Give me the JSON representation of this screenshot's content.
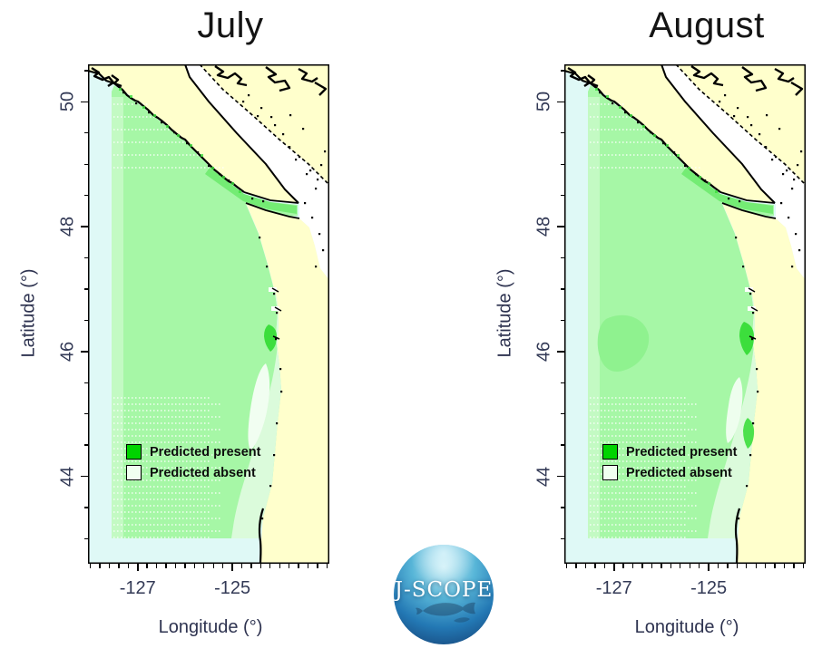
{
  "figure": {
    "background": "#ffffff",
    "panels": [
      {
        "id": "july",
        "title": "July"
      },
      {
        "id": "august",
        "title": "August"
      }
    ],
    "axes": {
      "x_label": "Longitude (°)",
      "y_label": "Latitude (°)",
      "x_major_ticks": [
        -127,
        -125
      ],
      "x_minor_step": 0.2,
      "x_range": [
        -128.05,
        -122.95
      ],
      "y_major_ticks": [
        50,
        48,
        46,
        44
      ],
      "y_minor_step": 0.5,
      "y_range": [
        42.6,
        50.6
      ]
    },
    "legend": {
      "items": [
        {
          "label": "Predicted present",
          "color": "#00D400",
          "border": "#000000"
        },
        {
          "label": "Predicted absent",
          "color": "#F0FFF0",
          "border": "#000000"
        }
      ]
    },
    "colors": {
      "land": "#FFFFCC",
      "ocean": "#DFF9F6",
      "inner_waters": "#FFFFFF",
      "domain_green": "#A6F7A6",
      "west_band": "#C6FAC6",
      "strait_band": "#6BEA6B",
      "absent_pale": "#DBFBDB",
      "absent_core": "#F1FEF1",
      "bright_green": "#3CDE3C",
      "august_blob": "#8DF18D",
      "coast": "#000000",
      "transect_dots": "#FFFFFF"
    },
    "logo": {
      "text": "J-SCOPE",
      "colors": [
        "#CDEEF5",
        "#58B6D8",
        "#2378B4",
        "#143C6E"
      ]
    }
  },
  "chart_data": {
    "type": "map",
    "title": "",
    "panels": [
      {
        "title": "July",
        "region": "Pacific Northwest coast (Vancouver Island to Oregon)",
        "classes": [
          "Predicted present (green ocean area)",
          "Predicted absent (pale/white nearshore tongue ~44–46°N)"
        ],
        "x_axis": {
          "label": "Longitude (°)",
          "ticks": [
            -127,
            -125
          ],
          "range": [
            -128.05,
            -122.95
          ]
        },
        "y_axis": {
          "label": "Latitude (°)",
          "ticks": [
            44,
            46,
            48,
            50
          ],
          "range": [
            42.6,
            50.6
          ]
        }
      },
      {
        "title": "August",
        "region": "Pacific Northwest coast (Vancouver Island to Oregon)",
        "classes": [
          "Predicted present (green ocean area)",
          "Predicted absent (pale nearshore band ~43–45.5°N)"
        ],
        "x_axis": {
          "label": "Longitude (°)",
          "ticks": [
            -127,
            -125
          ],
          "range": [
            -128.05,
            -122.95
          ]
        },
        "y_axis": {
          "label": "Latitude (°)",
          "ticks": [
            44,
            46,
            48,
            50
          ],
          "range": [
            42.6,
            50.6
          ]
        }
      }
    ],
    "legend_position": "lower-left inside each map",
    "grid": false
  }
}
